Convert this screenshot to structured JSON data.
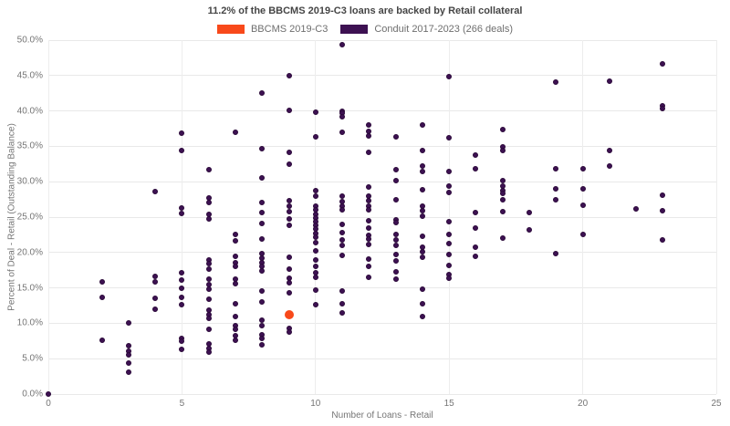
{
  "title": "11.2% of the BBCMS 2019-C3 loans are backed by Retail collateral",
  "colors": {
    "bbcms_orange": "#F8491A",
    "conduit_purple": "#3D1152",
    "grid": "#E9E9E9",
    "tick_text": "#757575",
    "title_text": "#454545"
  },
  "chart_data": {
    "type": "scatter",
    "title": "11.2% of the BBCMS 2019-C3 loans are backed by Retail collateral",
    "xlabel": "Number of Loans - Retail",
    "ylabel": "Percent of Deal - Retail (Outstanding Balance)",
    "xlim": [
      0,
      25
    ],
    "ylim": [
      0,
      50
    ],
    "grid": true,
    "legend_position": "top",
    "x_tick_values": [
      0,
      5,
      10,
      15,
      20,
      25
    ],
    "x_tick_labels": [
      "0",
      "5",
      "10",
      "15",
      "20",
      "25"
    ],
    "y_tick_values": [
      0,
      5,
      10,
      15,
      20,
      25,
      30,
      35,
      40,
      45,
      50
    ],
    "y_tick_labels": [
      "0.0%",
      "5.0%",
      "10.0%",
      "15.0%",
      "20.0%",
      "25.0%",
      "30.0%",
      "35.0%",
      "40.0%",
      "45.0%",
      "50.0%"
    ],
    "series": [
      {
        "name": "BBCMS 2019-C3",
        "color": "#F8491A",
        "marker_diameter": 10,
        "points": [
          [
            9,
            11.2
          ]
        ]
      },
      {
        "name": "Conduit 2017-2023 (266 deals)",
        "color": "#3D1152",
        "marker_diameter": 6,
        "points": [
          [
            0,
            0
          ],
          [
            2,
            15.8
          ],
          [
            2,
            13.6
          ],
          [
            2,
            7.6
          ],
          [
            3,
            10.1
          ],
          [
            3,
            6.8
          ],
          [
            3,
            6.1
          ],
          [
            3,
            5.5
          ],
          [
            3,
            4.4
          ],
          [
            3,
            3.1
          ],
          [
            4,
            28.6
          ],
          [
            4,
            16.6
          ],
          [
            4,
            15.8
          ],
          [
            4,
            13.5
          ],
          [
            4,
            12.0
          ],
          [
            5,
            36.9
          ],
          [
            5,
            34.4
          ],
          [
            5,
            26.3
          ],
          [
            5,
            25.5
          ],
          [
            5,
            17.1
          ],
          [
            5,
            16.1
          ],
          [
            5,
            14.9
          ],
          [
            5,
            13.7
          ],
          [
            5,
            12.6
          ],
          [
            5,
            7.9
          ],
          [
            5,
            7.5
          ],
          [
            5,
            6.3
          ],
          [
            6,
            31.7
          ],
          [
            6,
            27.7
          ],
          [
            6,
            27.1
          ],
          [
            6,
            25.4
          ],
          [
            6,
            24.7
          ],
          [
            6,
            18.9
          ],
          [
            6,
            18.4
          ],
          [
            6,
            17.6
          ],
          [
            6,
            16.2
          ],
          [
            6,
            15.5
          ],
          [
            6,
            14.8
          ],
          [
            6,
            13.4
          ],
          [
            6,
            11.8
          ],
          [
            6,
            11.2
          ],
          [
            6,
            10.7
          ],
          [
            6,
            9.1
          ],
          [
            6,
            7.1
          ],
          [
            6,
            6.4
          ],
          [
            6,
            5.9
          ],
          [
            7,
            37.0
          ],
          [
            7,
            22.5
          ],
          [
            7,
            21.7
          ],
          [
            7,
            19.5
          ],
          [
            7,
            18.6
          ],
          [
            7,
            18.0
          ],
          [
            7,
            16.2
          ],
          [
            7,
            15.6
          ],
          [
            7,
            12.8
          ],
          [
            7,
            10.9
          ],
          [
            7,
            9.7
          ],
          [
            7,
            9.2
          ],
          [
            7,
            8.3
          ],
          [
            7,
            7.6
          ],
          [
            8,
            42.5
          ],
          [
            8,
            34.7
          ],
          [
            8,
            30.5
          ],
          [
            8,
            27.0
          ],
          [
            8,
            25.6
          ],
          [
            8,
            24.1
          ],
          [
            8,
            21.9
          ],
          [
            8,
            19.9
          ],
          [
            8,
            19.2
          ],
          [
            8,
            18.6
          ],
          [
            8,
            18.0
          ],
          [
            8,
            17.4
          ],
          [
            8,
            14.5
          ],
          [
            8,
            13.0
          ],
          [
            8,
            10.4
          ],
          [
            8,
            9.7
          ],
          [
            8,
            8.4
          ],
          [
            8,
            7.8
          ],
          [
            8,
            6.9
          ],
          [
            9,
            45.0
          ],
          [
            9,
            40.1
          ],
          [
            9,
            34.2
          ],
          [
            9,
            32.5
          ],
          [
            9,
            27.3
          ],
          [
            9,
            26.6
          ],
          [
            9,
            25.8
          ],
          [
            9,
            24.7
          ],
          [
            9,
            23.9
          ],
          [
            9,
            19.3
          ],
          [
            9,
            17.7
          ],
          [
            9,
            16.4
          ],
          [
            9,
            15.7
          ],
          [
            9,
            14.3
          ],
          [
            9,
            9.3
          ],
          [
            9,
            8.7
          ],
          [
            10,
            39.8
          ],
          [
            10,
            36.4
          ],
          [
            10,
            28.8
          ],
          [
            10,
            28.0
          ],
          [
            10,
            26.6
          ],
          [
            10,
            26.0
          ],
          [
            10,
            25.4
          ],
          [
            10,
            24.9
          ],
          [
            10,
            24.4
          ],
          [
            10,
            23.8
          ],
          [
            10,
            23.3
          ],
          [
            10,
            22.7
          ],
          [
            10,
            22.2
          ],
          [
            10,
            21.4
          ],
          [
            10,
            20.2
          ],
          [
            10,
            18.9
          ],
          [
            10,
            18.1
          ],
          [
            10,
            17.1
          ],
          [
            10,
            16.5
          ],
          [
            10,
            14.7
          ],
          [
            10,
            12.6
          ],
          [
            11,
            49.4
          ],
          [
            11,
            40.0
          ],
          [
            11,
            39.7
          ],
          [
            11,
            39.2
          ],
          [
            11,
            37.0
          ],
          [
            11,
            27.9
          ],
          [
            11,
            27.2
          ],
          [
            11,
            26.6
          ],
          [
            11,
            26.0
          ],
          [
            11,
            24.0
          ],
          [
            11,
            22.8
          ],
          [
            11,
            21.8
          ],
          [
            11,
            21.0
          ],
          [
            11,
            19.6
          ],
          [
            11,
            14.6
          ],
          [
            11,
            12.8
          ],
          [
            11,
            11.5
          ],
          [
            12,
            38.0
          ],
          [
            12,
            37.1
          ],
          [
            12,
            36.5
          ],
          [
            12,
            34.1
          ],
          [
            12,
            29.2
          ],
          [
            12,
            27.9
          ],
          [
            12,
            27.3
          ],
          [
            12,
            26.6
          ],
          [
            12,
            26.0
          ],
          [
            12,
            24.5
          ],
          [
            12,
            23.4
          ],
          [
            12,
            22.4
          ],
          [
            12,
            21.9
          ],
          [
            12,
            21.1
          ],
          [
            12,
            19.1
          ],
          [
            12,
            18.0
          ],
          [
            12,
            16.5
          ],
          [
            13,
            36.3
          ],
          [
            13,
            31.7
          ],
          [
            13,
            30.2
          ],
          [
            13,
            27.4
          ],
          [
            13,
            24.6
          ],
          [
            13,
            24.2
          ],
          [
            13,
            22.5
          ],
          [
            13,
            21.8
          ],
          [
            13,
            21.0
          ],
          [
            13,
            19.7
          ],
          [
            13,
            18.8
          ],
          [
            13,
            17.3
          ],
          [
            13,
            16.2
          ],
          [
            14,
            38.0
          ],
          [
            14,
            34.4
          ],
          [
            14,
            32.2
          ],
          [
            14,
            31.4
          ],
          [
            14,
            28.9
          ],
          [
            14,
            26.6
          ],
          [
            14,
            25.9
          ],
          [
            14,
            25.1
          ],
          [
            14,
            22.3
          ],
          [
            14,
            20.8
          ],
          [
            14,
            20.1
          ],
          [
            14,
            19.3
          ],
          [
            14,
            14.8
          ],
          [
            14,
            12.8
          ],
          [
            14,
            10.9
          ],
          [
            15,
            44.9
          ],
          [
            15,
            36.2
          ],
          [
            15,
            31.4
          ],
          [
            15,
            29.4
          ],
          [
            15,
            28.5
          ],
          [
            15,
            24.4
          ],
          [
            15,
            22.5
          ],
          [
            15,
            21.2
          ],
          [
            15,
            19.7
          ],
          [
            15,
            18.2
          ],
          [
            15,
            16.9
          ],
          [
            15,
            16.4
          ],
          [
            16,
            33.7
          ],
          [
            16,
            31.8
          ],
          [
            16,
            25.7
          ],
          [
            16,
            23.5
          ],
          [
            16,
            20.8
          ],
          [
            16,
            19.5
          ],
          [
            17,
            37.4
          ],
          [
            17,
            34.9
          ],
          [
            17,
            34.4
          ],
          [
            17,
            30.2
          ],
          [
            17,
            29.4
          ],
          [
            17,
            28.8
          ],
          [
            17,
            28.3
          ],
          [
            17,
            27.4
          ],
          [
            17,
            25.8
          ],
          [
            17,
            22.1
          ],
          [
            18,
            25.6
          ],
          [
            18,
            23.2
          ],
          [
            19,
            44.1
          ],
          [
            19,
            31.8
          ],
          [
            19,
            29.0
          ],
          [
            19,
            27.5
          ],
          [
            19,
            19.8
          ],
          [
            20,
            31.8
          ],
          [
            20,
            29.0
          ],
          [
            20,
            26.7
          ],
          [
            20,
            22.5
          ],
          [
            21,
            44.2
          ],
          [
            21,
            34.4
          ],
          [
            21,
            32.2
          ],
          [
            22,
            26.1
          ],
          [
            23,
            46.7
          ],
          [
            23,
            40.7
          ],
          [
            23,
            40.3
          ],
          [
            23,
            28.1
          ],
          [
            23,
            25.9
          ],
          [
            23,
            21.8
          ]
        ]
      }
    ]
  }
}
